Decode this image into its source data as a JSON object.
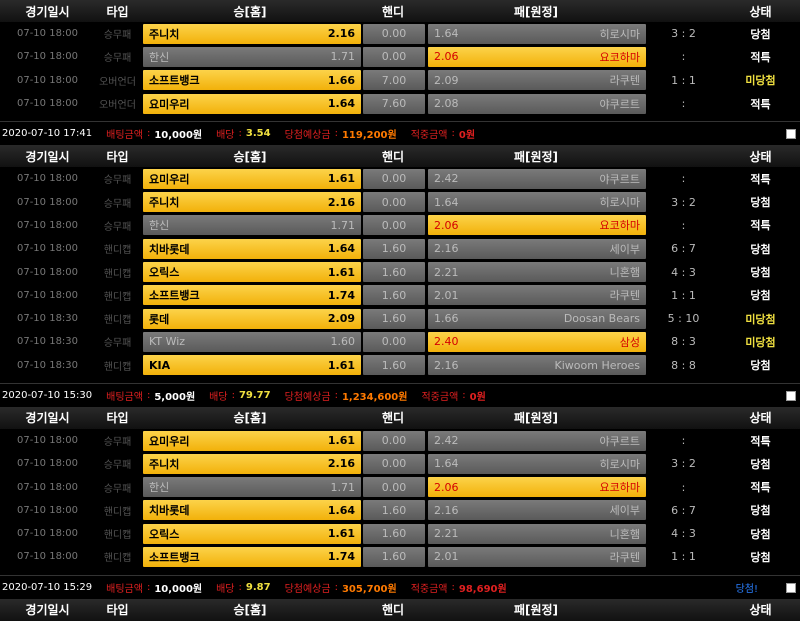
{
  "headers": {
    "date": "경기일시",
    "type": "타입",
    "home": "승[홈]",
    "handi": "핸디",
    "away": "패[원정]",
    "status": "상태"
  },
  "labels": {
    "bet": "배팅금액",
    "odds": "배당",
    "expected": "당첨예상금",
    "hit": "적중금액"
  },
  "colors": {
    "selected": "#f5b50f",
    "won_status": "#ffffff",
    "lost_status": "#f0e040",
    "expected": "#ff7a00"
  },
  "slips": [
    {
      "rows": [
        {
          "date": "07-10 18:00",
          "type": "승무패",
          "home": "주니치",
          "home_odds": "2.16",
          "handi": "0.00",
          "away_odds": "1.64",
          "away": "히로시마",
          "score": "3 : 2",
          "status": "당첨",
          "pick": "home"
        },
        {
          "date": "07-10 18:00",
          "type": "승무패",
          "home": "한신",
          "home_odds": "1.71",
          "handi": "0.00",
          "away_odds": "2.06",
          "away": "요코하마",
          "score": ":",
          "status": "적특",
          "pick": "away"
        },
        {
          "date": "07-10 18:00",
          "type": "오버언더",
          "home": "소프트뱅크",
          "home_odds": "1.66",
          "handi": "7.00",
          "away_odds": "2.09",
          "away": "라쿠텐",
          "score": "1 : 1",
          "status": "미당첨",
          "pick": "home"
        },
        {
          "date": "07-10 18:00",
          "type": "오버언더",
          "home": "요미우리",
          "home_odds": "1.64",
          "handi": "7.60",
          "away_odds": "2.08",
          "away": "야쿠르트",
          "score": ":",
          "status": "적특",
          "pick": "home"
        }
      ],
      "time": "2020-07-10 17:41",
      "bet": "10,000원",
      "odds": "3.54",
      "expected": "119,200원",
      "hit": "0원",
      "result": ""
    },
    {
      "rows": [
        {
          "date": "07-10 18:00",
          "type": "승무패",
          "home": "요미우리",
          "home_odds": "1.61",
          "handi": "0.00",
          "away_odds": "2.42",
          "away": "야쿠르트",
          "score": ":",
          "status": "적특",
          "pick": "home"
        },
        {
          "date": "07-10 18:00",
          "type": "승무패",
          "home": "주니치",
          "home_odds": "2.16",
          "handi": "0.00",
          "away_odds": "1.64",
          "away": "히로시마",
          "score": "3 : 2",
          "status": "당첨",
          "pick": "home"
        },
        {
          "date": "07-10 18:00",
          "type": "승무패",
          "home": "한신",
          "home_odds": "1.71",
          "handi": "0.00",
          "away_odds": "2.06",
          "away": "요코하마",
          "score": ":",
          "status": "적특",
          "pick": "away"
        },
        {
          "date": "07-10 18:00",
          "type": "핸디캡",
          "home": "치바롯데",
          "home_odds": "1.64",
          "handi": "1.60",
          "away_odds": "2.16",
          "away": "세이부",
          "score": "6 : 7",
          "status": "당첨",
          "pick": "home"
        },
        {
          "date": "07-10 18:00",
          "type": "핸디캡",
          "home": "오릭스",
          "home_odds": "1.61",
          "handi": "1.60",
          "away_odds": "2.21",
          "away": "니혼햄",
          "score": "4 : 3",
          "status": "당첨",
          "pick": "home"
        },
        {
          "date": "07-10 18:00",
          "type": "핸디캡",
          "home": "소프트뱅크",
          "home_odds": "1.74",
          "handi": "1.60",
          "away_odds": "2.01",
          "away": "라쿠텐",
          "score": "1 : 1",
          "status": "당첨",
          "pick": "home"
        },
        {
          "date": "07-10 18:30",
          "type": "핸디캡",
          "home": "롯데",
          "home_odds": "2.09",
          "handi": "1.60",
          "away_odds": "1.66",
          "away": "Doosan Bears",
          "score": "5 : 10",
          "status": "미당첨",
          "pick": "home"
        },
        {
          "date": "07-10 18:30",
          "type": "승무패",
          "home": "KT Wiz",
          "home_odds": "1.60",
          "handi": "0.00",
          "away_odds": "2.40",
          "away": "삼성",
          "score": "8 : 3",
          "status": "미당첨",
          "pick": "away"
        },
        {
          "date": "07-10 18:30",
          "type": "핸디캡",
          "home": "KIA",
          "home_odds": "1.61",
          "handi": "1.60",
          "away_odds": "2.16",
          "away": "Kiwoom Heroes",
          "score": "8 : 8",
          "status": "당첨",
          "pick": "home"
        }
      ],
      "time": "2020-07-10 15:30",
      "bet": "5,000원",
      "odds": "79.77",
      "expected": "1,234,600원",
      "hit": "0원",
      "result": ""
    },
    {
      "rows": [
        {
          "date": "07-10 18:00",
          "type": "승무패",
          "home": "요미우리",
          "home_odds": "1.61",
          "handi": "0.00",
          "away_odds": "2.42",
          "away": "야쿠르트",
          "score": ":",
          "status": "적특",
          "pick": "home"
        },
        {
          "date": "07-10 18:00",
          "type": "승무패",
          "home": "주니치",
          "home_odds": "2.16",
          "handi": "0.00",
          "away_odds": "1.64",
          "away": "히로시마",
          "score": "3 : 2",
          "status": "당첨",
          "pick": "home"
        },
        {
          "date": "07-10 18:00",
          "type": "승무패",
          "home": "한신",
          "home_odds": "1.71",
          "handi": "0.00",
          "away_odds": "2.06",
          "away": "요코하마",
          "score": ":",
          "status": "적특",
          "pick": "away"
        },
        {
          "date": "07-10 18:00",
          "type": "핸디캡",
          "home": "치바롯데",
          "home_odds": "1.64",
          "handi": "1.60",
          "away_odds": "2.16",
          "away": "세이부",
          "score": "6 : 7",
          "status": "당첨",
          "pick": "home"
        },
        {
          "date": "07-10 18:00",
          "type": "핸디캡",
          "home": "오릭스",
          "home_odds": "1.61",
          "handi": "1.60",
          "away_odds": "2.21",
          "away": "니혼햄",
          "score": "4 : 3",
          "status": "당첨",
          "pick": "home"
        },
        {
          "date": "07-10 18:00",
          "type": "핸디캡",
          "home": "소프트뱅크",
          "home_odds": "1.74",
          "handi": "1.60",
          "away_odds": "2.01",
          "away": "라쿠텐",
          "score": "1 : 1",
          "status": "당첨",
          "pick": "home"
        }
      ],
      "time": "2020-07-10 15:29",
      "bet": "10,000원",
      "odds": "9.87",
      "expected": "305,700원",
      "hit": "98,690원",
      "result": "당첨!"
    }
  ]
}
